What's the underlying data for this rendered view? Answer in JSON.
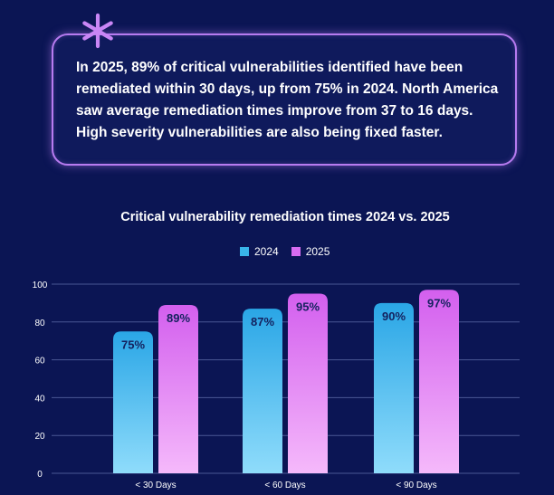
{
  "callout": {
    "text": "In 2025, 89% of critical vulnerabilities identified have been remediated within 30 days, up from 75% in 2024. North America saw average remediation times improve from 37 to 16 days. High severity vulnerabilities are also being fixed faster."
  },
  "colors": {
    "background": "#0b1554",
    "series_2024": "#39b4e8",
    "series_2025": "#d76cf0",
    "accent": "#b77bf0"
  },
  "chart_data": {
    "type": "bar",
    "title": "Critical vulnerability remediation times 2024 vs. 2025",
    "categories": [
      "< 30 Days",
      "< 60 Days",
      "< 90 Days"
    ],
    "series": [
      {
        "name": "2024",
        "values": [
          75,
          87,
          90
        ],
        "labels": [
          "75%",
          "87%",
          "90%"
        ]
      },
      {
        "name": "2025",
        "values": [
          89,
          95,
          97
        ],
        "labels": [
          "89%",
          "95%",
          "97%"
        ]
      }
    ],
    "yticks": [
      0,
      20,
      40,
      60,
      80,
      100
    ],
    "ylim": [
      0,
      100
    ],
    "xlabel": "",
    "ylabel": "",
    "grid": true,
    "legend_position": "top-center"
  }
}
